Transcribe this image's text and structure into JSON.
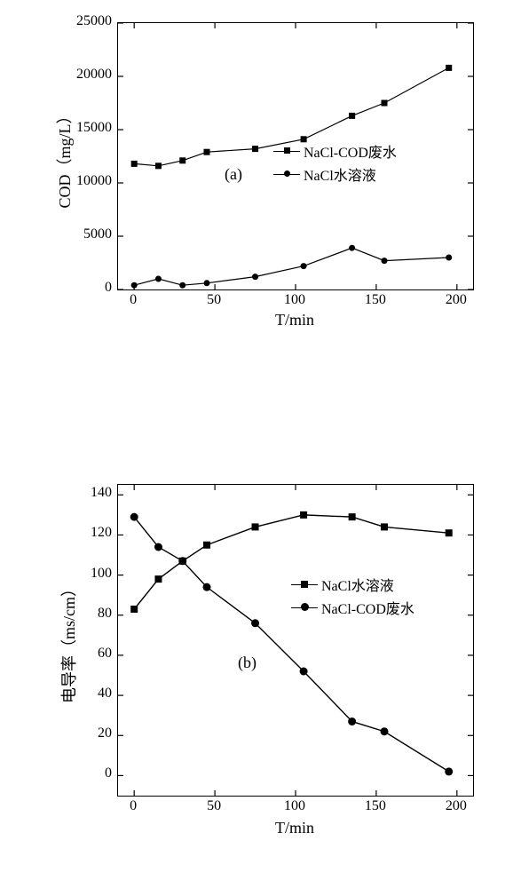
{
  "chart_a": {
    "type": "line",
    "panel_label": "(a)",
    "panel_label_fontsize": 18,
    "ylabel": "COD（mg/L）",
    "xlabel": "T/min",
    "label_fontsize": 18,
    "tick_fontsize": 16,
    "xlim": [
      -10,
      210
    ],
    "ylim": [
      0,
      25000
    ],
    "xticks": [
      0,
      50,
      100,
      150,
      200
    ],
    "yticks": [
      0,
      5000,
      10000,
      15000,
      20000,
      25000
    ],
    "series": [
      {
        "name": "NaCl-COD废水",
        "marker": "square",
        "marker_size": 7,
        "color": "#000000",
        "x": [
          0,
          15,
          30,
          45,
          75,
          105,
          135,
          155,
          195
        ],
        "y": [
          11800,
          11600,
          12100,
          12900,
          13200,
          14100,
          16300,
          17500,
          20800
        ]
      },
      {
        "name": "NaCl水溶液",
        "marker": "circle",
        "marker_size": 7,
        "color": "#000000",
        "x": [
          0,
          15,
          30,
          45,
          75,
          105,
          135,
          155,
          195
        ],
        "y": [
          400,
          1000,
          400,
          600,
          1200,
          2200,
          3900,
          2700,
          3000
        ]
      }
    ],
    "line_color": "#000000",
    "line_width": 1.2,
    "background_color": "#ffffff",
    "legend_position": "center-right"
  },
  "chart_b": {
    "type": "line",
    "panel_label": "(b)",
    "panel_label_fontsize": 18,
    "ylabel": "电导率（ms/cm）",
    "xlabel": "T/min",
    "label_fontsize": 18,
    "tick_fontsize": 16,
    "xlim": [
      -10,
      210
    ],
    "ylim": [
      -10,
      145
    ],
    "xticks": [
      0,
      50,
      100,
      150,
      200
    ],
    "yticks": [
      0,
      20,
      40,
      60,
      80,
      100,
      120,
      140
    ],
    "series": [
      {
        "name": "NaCl水溶液",
        "marker": "square",
        "marker_size": 8,
        "color": "#000000",
        "x": [
          0,
          15,
          30,
          45,
          75,
          105,
          135,
          155,
          195
        ],
        "y": [
          83,
          98,
          107,
          115,
          124,
          130,
          129,
          124,
          121
        ]
      },
      {
        "name": "NaCl-COD废水",
        "marker": "circle",
        "marker_size": 9,
        "fill": true,
        "color": "#000000",
        "x": [
          0,
          15,
          30,
          45,
          75,
          105,
          135,
          155,
          195
        ],
        "y": [
          129,
          114,
          107,
          94,
          76,
          52,
          27,
          22,
          2
        ]
      }
    ],
    "line_color": "#000000",
    "line_width": 1.4,
    "background_color": "#ffffff",
    "legend_position": "upper-right"
  }
}
